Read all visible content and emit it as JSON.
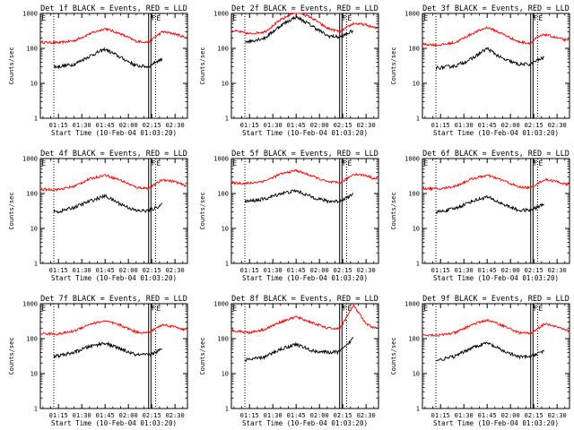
{
  "figure": {
    "background": "#ffffff",
    "foreground": "#000000",
    "lld_color": "#ff0000",
    "events_color": "#000000"
  },
  "chart_data": [
    {
      "type": "line",
      "title": "Det 1f BLACK = Events, RED = LLD",
      "xlabel": "Start Time (10-Feb-04 01:03:20)",
      "ylabel": "Counts/sec",
      "x_ticks": [
        "01:15",
        "01:30",
        "01:45",
        "02:00",
        "02:15",
        "02:30"
      ],
      "y_ticks": [
        "1",
        "10",
        "100",
        "1000"
      ],
      "y_scale": "log",
      "ylim": [
        1,
        1000
      ],
      "xlim": [
        "01:03:20",
        "02:38:00"
      ],
      "grid": false,
      "dotted_markers": [
        "01:12:00",
        "02:17:30"
      ],
      "solid_markers": [
        "02:13:00",
        "02:14:30"
      ],
      "edge_labels": [
        "E",
        "F",
        "E"
      ],
      "x": [
        "01:05",
        "01:15",
        "01:25",
        "01:35",
        "01:45",
        "01:55",
        "02:05",
        "02:13",
        "02:17",
        "02:22",
        "02:30",
        "02:36"
      ],
      "series": [
        {
          "name": "LLD",
          "color": "#ff0000",
          "values": [
            150,
            145,
            165,
            260,
            370,
            260,
            160,
            150,
            210,
            300,
            260,
            210
          ]
        },
        {
          "name": "Events",
          "color": "#000000",
          "x_start": "01:12",
          "x_end": "02:22",
          "values": [
            null,
            30,
            35,
            60,
            95,
            55,
            32,
            30,
            40,
            50,
            null,
            null
          ]
        }
      ]
    },
    {
      "type": "line",
      "title": "Det 2f BLACK = Events, RED = LLD",
      "xlabel": "Start Time (10-Feb-04 01:03:20)",
      "ylabel": "Counts/sec",
      "x_ticks": [
        "01:15",
        "01:30",
        "01:45",
        "02:00",
        "02:15",
        "02:30"
      ],
      "y_ticks": [
        "1",
        "10",
        "100",
        "1000"
      ],
      "y_scale": "log",
      "ylim": [
        1,
        1000
      ],
      "xlim": [
        "01:03:20",
        "02:38:00"
      ],
      "grid": false,
      "dotted_markers": [
        "01:12:00",
        "02:17:30"
      ],
      "solid_markers": [
        "02:13:00",
        "02:14:30"
      ],
      "edge_labels": [
        "E",
        "F",
        "E"
      ],
      "x": [
        "01:05",
        "01:15",
        "01:25",
        "01:35",
        "01:45",
        "01:55",
        "02:05",
        "02:13",
        "02:17",
        "02:22",
        "02:30",
        "02:36"
      ],
      "series": [
        {
          "name": "LLD",
          "color": "#ff0000",
          "values": [
            320,
            260,
            300,
            650,
            1150,
            750,
            380,
            300,
            380,
            520,
            470,
            380
          ]
        },
        {
          "name": "Events",
          "color": "#000000",
          "x_start": "01:12",
          "x_end": "02:22",
          "values": [
            null,
            160,
            200,
            450,
            800,
            450,
            230,
            210,
            250,
            330,
            null,
            null
          ]
        }
      ]
    },
    {
      "type": "line",
      "title": "Det 3f BLACK = Events, RED = LLD",
      "xlabel": "Start Time (10-Feb-04 01:03:20)",
      "ylabel": "Counts/sec",
      "x_ticks": [
        "01:15",
        "01:30",
        "01:45",
        "02:00",
        "02:15",
        "02:30"
      ],
      "y_ticks": [
        "1",
        "10",
        "100",
        "1000"
      ],
      "y_scale": "log",
      "ylim": [
        1,
        1000
      ],
      "xlim": [
        "01:03:20",
        "02:38:00"
      ],
      "grid": false,
      "dotted_markers": [
        "01:12:00",
        "02:17:30"
      ],
      "solid_markers": [
        "02:13:00",
        "02:14:30"
      ],
      "edge_labels": [
        "E",
        "F",
        "E"
      ],
      "x": [
        "01:05",
        "01:15",
        "01:25",
        "01:35",
        "01:45",
        "01:55",
        "02:05",
        "02:13",
        "02:17",
        "02:22",
        "02:30",
        "02:36"
      ],
      "series": [
        {
          "name": "LLD",
          "color": "#ff0000",
          "values": [
            130,
            125,
            150,
            260,
            400,
            260,
            155,
            140,
            200,
            250,
            200,
            170
          ]
        },
        {
          "name": "Events",
          "color": "#000000",
          "x_start": "01:12",
          "x_end": "02:22",
          "values": [
            null,
            28,
            32,
            50,
            100,
            50,
            35,
            35,
            45,
            55,
            null,
            null
          ]
        }
      ]
    },
    {
      "type": "line",
      "title": "Det 4f BLACK = Events, RED = LLD",
      "xlabel": "Start Time (10-Feb-04 01:03:20)",
      "ylabel": "Counts/sec",
      "x_ticks": [
        "01:15",
        "01:30",
        "01:45",
        "02:00",
        "02:15",
        "02:30"
      ],
      "y_ticks": [
        "1",
        "10",
        "100",
        "1000"
      ],
      "y_scale": "log",
      "ylim": [
        1,
        1000
      ],
      "xlim": [
        "01:03:20",
        "02:38:00"
      ],
      "grid": false,
      "dotted_markers": [
        "01:12:00",
        "02:17:30"
      ],
      "solid_markers": [
        "02:13:00",
        "02:14:30"
      ],
      "edge_labels": [
        "E",
        "F",
        "E"
      ],
      "x": [
        "01:05",
        "01:15",
        "01:25",
        "01:35",
        "01:45",
        "01:55",
        "02:05",
        "02:13",
        "02:17",
        "02:22",
        "02:30",
        "02:36"
      ],
      "series": [
        {
          "name": "LLD",
          "color": "#ff0000",
          "values": [
            130,
            130,
            160,
            260,
            340,
            240,
            150,
            140,
            180,
            250,
            220,
            170
          ]
        },
        {
          "name": "Events",
          "color": "#000000",
          "x_start": "01:12",
          "x_end": "02:22",
          "values": [
            null,
            30,
            40,
            60,
            85,
            50,
            32,
            32,
            38,
            50,
            null,
            null
          ]
        }
      ]
    },
    {
      "type": "line",
      "title": "Det 5f BLACK = Events, RED = LLD",
      "xlabel": "Start Time (10-Feb-04 01:03:20)",
      "ylabel": "Counts/sec",
      "x_ticks": [
        "01:15",
        "01:30",
        "01:45",
        "02:00",
        "02:15",
        "02:30"
      ],
      "y_ticks": [
        "1",
        "10",
        "100",
        "1000"
      ],
      "y_scale": "log",
      "ylim": [
        1,
        1000
      ],
      "xlim": [
        "01:03:20",
        "02:38:00"
      ],
      "grid": false,
      "dotted_markers": [
        "01:12:00",
        "02:17:30"
      ],
      "solid_markers": [
        "02:13:00",
        "02:14:30"
      ],
      "edge_labels": [
        "E",
        "F",
        "E"
      ],
      "x": [
        "01:05",
        "01:15",
        "01:25",
        "01:35",
        "01:45",
        "01:55",
        "02:05",
        "02:13",
        "02:17",
        "02:22",
        "02:30",
        "02:36"
      ],
      "series": [
        {
          "name": "LLD",
          "color": "#ff0000",
          "values": [
            200,
            195,
            230,
            360,
            460,
            320,
            215,
            200,
            250,
            360,
            330,
            260
          ]
        },
        {
          "name": "Events",
          "color": "#000000",
          "x_start": "01:12",
          "x_end": "02:22",
          "values": [
            null,
            60,
            70,
            100,
            120,
            80,
            60,
            60,
            75,
            95,
            null,
            null
          ]
        }
      ]
    },
    {
      "type": "line",
      "title": "Det 6f BLACK = Events, RED = LLD",
      "xlabel": "Start Time (10-Feb-04 01:03:20)",
      "ylabel": "Counts/sec",
      "x_ticks": [
        "01:15",
        "01:30",
        "01:45",
        "02:00",
        "02:15",
        "02:30"
      ],
      "y_ticks": [
        "1",
        "10",
        "100",
        "1000"
      ],
      "y_scale": "log",
      "ylim": [
        1,
        1000
      ],
      "xlim": [
        "01:03:20",
        "02:38:00"
      ],
      "grid": false,
      "dotted_markers": [
        "01:12:00",
        "02:17:30"
      ],
      "solid_markers": [
        "02:13:00",
        "02:14:30"
      ],
      "edge_labels": [
        "E",
        "F",
        "E"
      ],
      "x": [
        "01:05",
        "01:15",
        "01:25",
        "01:35",
        "01:45",
        "01:55",
        "02:05",
        "02:13",
        "02:17",
        "02:22",
        "02:30",
        "02:36"
      ],
      "series": [
        {
          "name": "LLD",
          "color": "#ff0000",
          "values": [
            140,
            135,
            165,
            260,
            330,
            240,
            155,
            145,
            190,
            250,
            220,
            180
          ]
        },
        {
          "name": "Events",
          "color": "#000000",
          "x_start": "01:12",
          "x_end": "02:22",
          "values": [
            null,
            30,
            38,
            60,
            80,
            50,
            33,
            33,
            40,
            50,
            null,
            null
          ]
        }
      ]
    },
    {
      "type": "line",
      "title": "Det 7f BLACK = Events, RED = LLD",
      "xlabel": "Start Time (10-Feb-04 01:03:20)",
      "ylabel": "Counts/sec",
      "x_ticks": [
        "01:15",
        "01:30",
        "01:45",
        "02:00",
        "02:15",
        "02:30"
      ],
      "y_ticks": [
        "1",
        "10",
        "100",
        "1000"
      ],
      "y_scale": "log",
      "ylim": [
        1,
        1000
      ],
      "xlim": [
        "01:03:20",
        "02:38:00"
      ],
      "grid": false,
      "dotted_markers": [
        "01:12:00",
        "02:17:30"
      ],
      "solid_markers": [
        "02:13:00",
        "02:14:30"
      ],
      "edge_labels": [
        "E",
        "F",
        "E"
      ],
      "x": [
        "01:05",
        "01:15",
        "01:25",
        "01:35",
        "01:45",
        "01:55",
        "02:05",
        "02:13",
        "02:17",
        "02:22",
        "02:30",
        "02:36"
      ],
      "series": [
        {
          "name": "LLD",
          "color": "#ff0000",
          "values": [
            140,
            135,
            165,
            260,
            320,
            240,
            155,
            145,
            190,
            250,
            220,
            180
          ]
        },
        {
          "name": "Events",
          "color": "#000000",
          "x_start": "01:12",
          "x_end": "02:22",
          "values": [
            null,
            32,
            40,
            60,
            75,
            50,
            34,
            34,
            40,
            50,
            null,
            null
          ]
        }
      ]
    },
    {
      "type": "line",
      "title": "Det 8f BLACK = Events, RED = LLD",
      "xlabel": "Start Time (10-Feb-04 01:03:20)",
      "ylabel": "Counts/sec",
      "x_ticks": [
        "01:15",
        "01:30",
        "01:45",
        "02:00",
        "02:15",
        "02:30"
      ],
      "y_ticks": [
        "1",
        "10",
        "100",
        "1000"
      ],
      "y_scale": "log",
      "ylim": [
        1,
        1000
      ],
      "xlim": [
        "01:03:20",
        "02:38:00"
      ],
      "grid": false,
      "dotted_markers": [
        "01:12:00",
        "02:17:30"
      ],
      "solid_markers": [
        "02:13:00",
        "02:14:30"
      ],
      "edge_labels": [
        "E",
        "F",
        "E"
      ],
      "x": [
        "01:05",
        "01:15",
        "01:25",
        "01:35",
        "01:45",
        "01:55",
        "02:05",
        "02:13",
        "02:17",
        "02:22",
        "02:30",
        "02:36"
      ],
      "series": [
        {
          "name": "LLD",
          "color": "#ff0000",
          "values": [
            170,
            150,
            185,
            300,
            420,
            290,
            200,
            190,
            380,
            900,
            260,
            200
          ]
        },
        {
          "name": "Events",
          "color": "#000000",
          "x_start": "01:12",
          "x_end": "02:22",
          "values": [
            null,
            25,
            30,
            50,
            70,
            45,
            40,
            42,
            60,
            110,
            null,
            null
          ]
        }
      ]
    },
    {
      "type": "line",
      "title": "Det 9f BLACK = Events, RED = LLD",
      "xlabel": "Start Time (10-Feb-04 01:03:20)",
      "ylabel": "Counts/sec",
      "x_ticks": [
        "01:15",
        "01:30",
        "01:45",
        "02:00",
        "02:15",
        "02:30"
      ],
      "y_ticks": [
        "1",
        "10",
        "100",
        "1000"
      ],
      "y_scale": "log",
      "ylim": [
        1,
        1000
      ],
      "xlim": [
        "01:03:20",
        "02:38:00"
      ],
      "grid": false,
      "dotted_markers": [
        "01:12:00",
        "02:17:30"
      ],
      "solid_markers": [
        "02:13:00",
        "02:14:30"
      ],
      "edge_labels": [
        "E",
        "F",
        "E"
      ],
      "x": [
        "01:05",
        "01:15",
        "01:25",
        "01:35",
        "01:45",
        "01:55",
        "02:05",
        "02:13",
        "02:17",
        "02:22",
        "02:30",
        "02:36"
      ],
      "series": [
        {
          "name": "LLD",
          "color": "#ff0000",
          "values": [
            130,
            125,
            150,
            250,
            340,
            240,
            150,
            140,
            190,
            260,
            220,
            170
          ]
        },
        {
          "name": "Events",
          "color": "#000000",
          "x_start": "01:12",
          "x_end": "02:22",
          "values": [
            null,
            25,
            32,
            55,
            75,
            45,
            30,
            30,
            38,
            45,
            null,
            null
          ]
        }
      ]
    }
  ]
}
